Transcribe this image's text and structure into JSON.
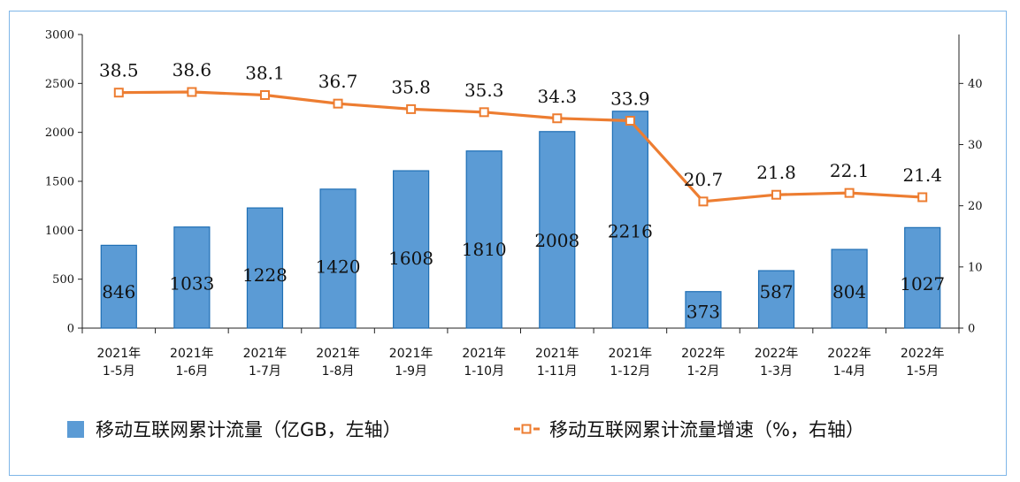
{
  "chart_data": {
    "type": "bar",
    "categories": [
      [
        "2021年",
        "1-5月"
      ],
      [
        "2021年",
        "1-6月"
      ],
      [
        "2021年",
        "1-7月"
      ],
      [
        "2021年",
        "1-8月"
      ],
      [
        "2021年",
        "1-9月"
      ],
      [
        "2021年",
        "1-10月"
      ],
      [
        "2021年",
        "1-11月"
      ],
      [
        "2021年",
        "1-12月"
      ],
      [
        "2022年",
        "1-2月"
      ],
      [
        "2022年",
        "1-3月"
      ],
      [
        "2022年",
        "1-4月"
      ],
      [
        "2022年",
        "1-5月"
      ]
    ],
    "series": [
      {
        "name": "移动互联网累计流量（亿GB，左轴）",
        "type": "bar",
        "axis": "left",
        "color": "#5b9bd5",
        "values": [
          846,
          1033,
          1228,
          1420,
          1608,
          1810,
          2008,
          2216,
          373,
          587,
          804,
          1027
        ]
      },
      {
        "name": "移动互联网累计流量增速（%，右轴）",
        "type": "line",
        "axis": "right",
        "color": "#ed7d31",
        "values": [
          38.5,
          38.6,
          38.1,
          36.7,
          35.8,
          35.3,
          34.3,
          33.9,
          20.7,
          21.8,
          22.1,
          21.4
        ]
      }
    ],
    "left_axis": {
      "range": [
        0,
        3000
      ],
      "ticks": [
        "0",
        "500",
        "1000",
        "1500",
        "2000",
        "2500",
        "3000"
      ]
    },
    "right_axis": {
      "range": [
        0,
        48
      ],
      "ticks": [
        "0",
        "10",
        "20",
        "30",
        "40"
      ]
    },
    "grid": false,
    "legend_position": "bottom-left"
  }
}
